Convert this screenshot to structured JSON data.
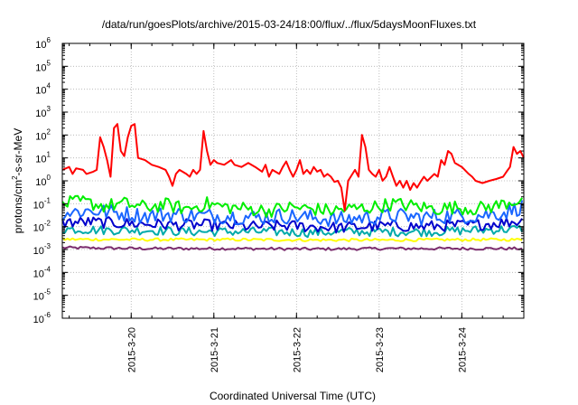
{
  "chart_data": {
    "type": "line",
    "title": "/data/run/goesPlots/archive/2015-03-24/18:00/flux/../flux/5daysMoonFluxes.txt",
    "xlabel": "Coordinated Universal Time (UTC)",
    "ylabel": "protons/cm²-s-sr-MeV",
    "ylabel_parts": {
      "main": "protons/cm",
      "sup": "2",
      "rest": "-s-sr-MeV"
    },
    "y_scale": "log",
    "ylim_exp": [
      -6,
      6
    ],
    "y_tick_labels": [
      {
        "base": "10",
        "exp": "6"
      },
      {
        "base": "10",
        "exp": "5"
      },
      {
        "base": "10",
        "exp": "4"
      },
      {
        "base": "10",
        "exp": "3"
      },
      {
        "base": "10",
        "exp": "2"
      },
      {
        "base": "10",
        "exp": "1"
      },
      {
        "base": "10",
        "exp": "0"
      },
      {
        "base": "10",
        "exp": "-1"
      },
      {
        "base": "10",
        "exp": "-2"
      },
      {
        "base": "10",
        "exp": "-3"
      },
      {
        "base": "10",
        "exp": "-4"
      },
      {
        "base": "10",
        "exp": "-5"
      },
      {
        "base": "10",
        "exp": "-6"
      }
    ],
    "xlim": [
      "2015-03-19 04:00",
      "2015-03-24 18:00"
    ],
    "x_ticks": [
      "2015-3-20",
      "2015-3-21",
      "2015-3-22",
      "2015-3-23",
      "2015-3-24"
    ],
    "grid": true,
    "series": [
      {
        "color": "#ff0000",
        "points": [
          [
            "2015-03-19 04:00",
            3.0
          ],
          [
            "2015-03-19 06:00",
            4.0
          ],
          [
            "2015-03-19 07:00",
            2.0
          ],
          [
            "2015-03-19 08:00",
            3.5
          ],
          [
            "2015-03-19 10:00",
            3.0
          ],
          [
            "2015-03-19 11:00",
            2.0
          ],
          [
            "2015-03-19 13:00",
            2.5
          ],
          [
            "2015-03-19 14:00",
            3.0
          ],
          [
            "2015-03-19 15:00",
            80
          ],
          [
            "2015-03-19 16:00",
            30
          ],
          [
            "2015-03-19 17:00",
            8
          ],
          [
            "2015-03-19 18:00",
            1.5
          ],
          [
            "2015-03-19 19:00",
            200
          ],
          [
            "2015-03-19 20:00",
            300
          ],
          [
            "2015-03-19 21:00",
            20
          ],
          [
            "2015-03-19 22:00",
            12
          ],
          [
            "2015-03-19 23:00",
            80
          ],
          [
            "2015-03-20 00:00",
            250
          ],
          [
            "2015-03-20 01:00",
            300
          ],
          [
            "2015-03-20 02:00",
            10
          ],
          [
            "2015-03-20 04:00",
            8
          ],
          [
            "2015-03-20 06:00",
            5
          ],
          [
            "2015-03-20 08:00",
            4
          ],
          [
            "2015-03-20 10:00",
            3
          ],
          [
            "2015-03-20 11:00",
            1.5
          ],
          [
            "2015-03-20 12:00",
            0.6
          ],
          [
            "2015-03-20 13:00",
            2
          ],
          [
            "2015-03-20 14:00",
            3
          ],
          [
            "2015-03-20 16:00",
            2
          ],
          [
            "2015-03-20 17:00",
            1.5
          ],
          [
            "2015-03-20 18:00",
            3
          ],
          [
            "2015-03-20 19:00",
            2
          ],
          [
            "2015-03-20 20:00",
            3
          ],
          [
            "2015-03-20 21:00",
            150
          ],
          [
            "2015-03-20 22:00",
            20
          ],
          [
            "2015-03-20 23:00",
            5
          ],
          [
            "2015-03-21 00:00",
            8
          ],
          [
            "2015-03-21 01:00",
            6
          ],
          [
            "2015-03-21 03:00",
            5
          ],
          [
            "2015-03-21 05:00",
            8
          ],
          [
            "2015-03-21 06:00",
            5
          ],
          [
            "2015-03-21 08:00",
            4
          ],
          [
            "2015-03-21 10:00",
            6
          ],
          [
            "2015-03-21 12:00",
            4
          ],
          [
            "2015-03-21 14:00",
            2.5
          ],
          [
            "2015-03-21 15:00",
            5
          ],
          [
            "2015-03-21 16:00",
            1.5
          ],
          [
            "2015-03-21 17:00",
            3
          ],
          [
            "2015-03-21 19:00",
            2
          ],
          [
            "2015-03-21 20:00",
            4
          ],
          [
            "2015-03-21 21:00",
            7
          ],
          [
            "2015-03-21 22:00",
            3
          ],
          [
            "2015-03-21 23:00",
            1.5
          ],
          [
            "2015-03-22 00:00",
            3
          ],
          [
            "2015-03-22 01:00",
            8
          ],
          [
            "2015-03-22 02:00",
            2
          ],
          [
            "2015-03-22 03:00",
            3
          ],
          [
            "2015-03-22 04:00",
            2
          ],
          [
            "2015-03-22 05:00",
            4
          ],
          [
            "2015-03-22 06:00",
            2.5
          ],
          [
            "2015-03-22 07:00",
            3
          ],
          [
            "2015-03-22 08:00",
            1.5
          ],
          [
            "2015-03-22 09:00",
            2
          ],
          [
            "2015-03-22 10:00",
            1.5
          ],
          [
            "2015-03-22 11:00",
            0.9
          ],
          [
            "2015-03-22 12:00",
            1
          ],
          [
            "2015-03-22 13:00",
            0.5
          ],
          [
            "2015-03-22 14:00",
            0.05
          ],
          [
            "2015-03-22 15:00",
            1
          ],
          [
            "2015-03-22 17:00",
            3
          ],
          [
            "2015-03-22 18:00",
            1.5
          ],
          [
            "2015-03-22 19:00",
            100
          ],
          [
            "2015-03-22 20:00",
            30
          ],
          [
            "2015-03-22 21:00",
            3
          ],
          [
            "2015-03-22 22:00",
            2
          ],
          [
            "2015-03-22 23:00",
            1.5
          ],
          [
            "2015-03-23 00:00",
            3
          ],
          [
            "2015-03-23 01:00",
            1
          ],
          [
            "2015-03-23 02:00",
            1.5
          ],
          [
            "2015-03-23 03:00",
            4
          ],
          [
            "2015-03-23 04:00",
            1.5
          ],
          [
            "2015-03-23 05:00",
            0.6
          ],
          [
            "2015-03-23 06:00",
            1
          ],
          [
            "2015-03-23 07:00",
            0.5
          ],
          [
            "2015-03-23 08:00",
            1
          ],
          [
            "2015-03-23 09:00",
            0.4
          ],
          [
            "2015-03-23 10:00",
            0.8
          ],
          [
            "2015-03-23 11:00",
            0.5
          ],
          [
            "2015-03-23 12:00",
            0.9
          ],
          [
            "2015-03-23 13:00",
            1.5
          ],
          [
            "2015-03-23 14:00",
            1
          ],
          [
            "2015-03-23 16:00",
            2
          ],
          [
            "2015-03-23 17:00",
            1.5
          ],
          [
            "2015-03-23 18:00",
            8
          ],
          [
            "2015-03-23 19:00",
            5
          ],
          [
            "2015-03-23 20:00",
            20
          ],
          [
            "2015-03-23 21:00",
            15
          ],
          [
            "2015-03-23 22:00",
            6
          ],
          [
            "2015-03-24 00:00",
            4
          ],
          [
            "2015-03-24 02:00",
            2
          ],
          [
            "2015-03-24 03:00",
            1.5
          ],
          [
            "2015-03-24 04:00",
            1
          ],
          [
            "2015-03-24 06:00",
            0.8
          ],
          [
            "2015-03-24 08:00",
            1
          ],
          [
            "2015-03-24 10:00",
            1.2
          ],
          [
            "2015-03-24 12:00",
            1.5
          ],
          [
            "2015-03-24 13:00",
            2.5
          ],
          [
            "2015-03-24 14:00",
            4
          ],
          [
            "2015-03-24 15:00",
            30
          ],
          [
            "2015-03-24 16:00",
            15
          ],
          [
            "2015-03-24 17:00",
            20
          ],
          [
            "2015-03-24 18:00",
            10
          ]
        ]
      },
      {
        "color": "#00ee00",
        "points": [
          [
            "2015-03-19 04:00",
            0.1
          ],
          [
            "2015-03-19 10:00",
            0.12
          ],
          [
            "2015-03-19 16:00",
            0.08
          ],
          [
            "2015-03-19 22:00",
            0.1
          ],
          [
            "2015-03-20 04:00",
            0.07
          ],
          [
            "2015-03-20 10:00",
            0.09
          ],
          [
            "2015-03-20 16:00",
            0.06
          ],
          [
            "2015-03-20 22:00",
            0.1
          ],
          [
            "2015-03-21 04:00",
            0.07
          ],
          [
            "2015-03-21 10:00",
            0.06
          ],
          [
            "2015-03-21 16:00",
            0.05
          ],
          [
            "2015-03-21 22:00",
            0.07
          ],
          [
            "2015-03-22 04:00",
            0.06
          ],
          [
            "2015-03-22 10:00",
            0.05
          ],
          [
            "2015-03-22 16:00",
            0.06
          ],
          [
            "2015-03-22 22:00",
            0.07
          ],
          [
            "2015-03-23 04:00",
            0.1
          ],
          [
            "2015-03-23 10:00",
            0.08
          ],
          [
            "2015-03-23 16:00",
            0.06
          ],
          [
            "2015-03-23 22:00",
            0.07
          ],
          [
            "2015-03-24 04:00",
            0.06
          ],
          [
            "2015-03-24 10:00",
            0.08
          ],
          [
            "2015-03-24 14:00",
            0.12
          ],
          [
            "2015-03-24 18:00",
            0.16
          ]
        ],
        "amplitude": 0.6
      },
      {
        "color": "#1a66ff",
        "points": [
          [
            "2015-03-19 04:00",
            0.04
          ],
          [
            "2015-03-19 12:00",
            0.05
          ],
          [
            "2015-03-19 20:00",
            0.04
          ],
          [
            "2015-03-20 04:00",
            0.03
          ],
          [
            "2015-03-20 12:00",
            0.035
          ],
          [
            "2015-03-20 20:00",
            0.03
          ],
          [
            "2015-03-21 04:00",
            0.03
          ],
          [
            "2015-03-21 12:00",
            0.025
          ],
          [
            "2015-03-21 20:00",
            0.03
          ],
          [
            "2015-03-22 04:00",
            0.025
          ],
          [
            "2015-03-22 12:00",
            0.02
          ],
          [
            "2015-03-22 20:00",
            0.025
          ],
          [
            "2015-03-23 04:00",
            0.03
          ],
          [
            "2015-03-23 12:00",
            0.025
          ],
          [
            "2015-03-23 20:00",
            0.03
          ],
          [
            "2015-03-24 04:00",
            0.03
          ],
          [
            "2015-03-24 12:00",
            0.04
          ],
          [
            "2015-03-24 18:00",
            0.08
          ]
        ],
        "amplitude": 0.7
      },
      {
        "color": "#0000cc",
        "points": [
          [
            "2015-03-19 04:00",
            0.015
          ],
          [
            "2015-03-19 12:00",
            0.016
          ],
          [
            "2015-03-19 20:00",
            0.014
          ],
          [
            "2015-03-20 04:00",
            0.013
          ],
          [
            "2015-03-20 12:00",
            0.012
          ],
          [
            "2015-03-20 20:00",
            0.012
          ],
          [
            "2015-03-21 04:00",
            0.011
          ],
          [
            "2015-03-21 12:00",
            0.01
          ],
          [
            "2015-03-21 20:00",
            0.011
          ],
          [
            "2015-03-22 04:00",
            0.01
          ],
          [
            "2015-03-22 12:00",
            0.009
          ],
          [
            "2015-03-22 20:00",
            0.01
          ],
          [
            "2015-03-23 04:00",
            0.011
          ],
          [
            "2015-03-23 12:00",
            0.01
          ],
          [
            "2015-03-23 20:00",
            0.011
          ],
          [
            "2015-03-24 04:00",
            0.012
          ],
          [
            "2015-03-24 12:00",
            0.015
          ],
          [
            "2015-03-24 18:00",
            0.018
          ]
        ],
        "amplitude": 0.5
      },
      {
        "color": "#00aaaa",
        "points": [
          [
            "2015-03-19 04:00",
            0.008
          ],
          [
            "2015-03-19 16:00",
            0.007
          ],
          [
            "2015-03-20 04:00",
            0.007
          ],
          [
            "2015-03-20 16:00",
            0.006
          ],
          [
            "2015-03-21 04:00",
            0.006
          ],
          [
            "2015-03-21 16:00",
            0.006
          ],
          [
            "2015-03-22 04:00",
            0.0055
          ],
          [
            "2015-03-22 16:00",
            0.006
          ],
          [
            "2015-03-23 04:00",
            0.006
          ],
          [
            "2015-03-23 16:00",
            0.006
          ],
          [
            "2015-03-24 04:00",
            0.007
          ],
          [
            "2015-03-24 18:00",
            0.008
          ]
        ],
        "amplitude": 0.4
      },
      {
        "color": "#ffff00",
        "points": [
          [
            "2015-03-19 04:00",
            0.0028
          ],
          [
            "2015-03-20 04:00",
            0.0027
          ],
          [
            "2015-03-21 04:00",
            0.0027
          ],
          [
            "2015-03-22 04:00",
            0.0026
          ],
          [
            "2015-03-23 04:00",
            0.0026
          ],
          [
            "2015-03-24 04:00",
            0.0027
          ],
          [
            "2015-03-24 18:00",
            0.0027
          ]
        ],
        "amplitude": 0.12
      },
      {
        "color": "#7b2d6e",
        "points": [
          [
            "2015-03-19 04:00",
            0.0012
          ],
          [
            "2015-03-20 04:00",
            0.0011
          ],
          [
            "2015-03-21 04:00",
            0.0011
          ],
          [
            "2015-03-22 04:00",
            0.00105
          ],
          [
            "2015-03-23 04:00",
            0.0011
          ],
          [
            "2015-03-24 04:00",
            0.0011
          ],
          [
            "2015-03-24 18:00",
            0.0011
          ]
        ],
        "amplitude": 0.12
      }
    ]
  }
}
